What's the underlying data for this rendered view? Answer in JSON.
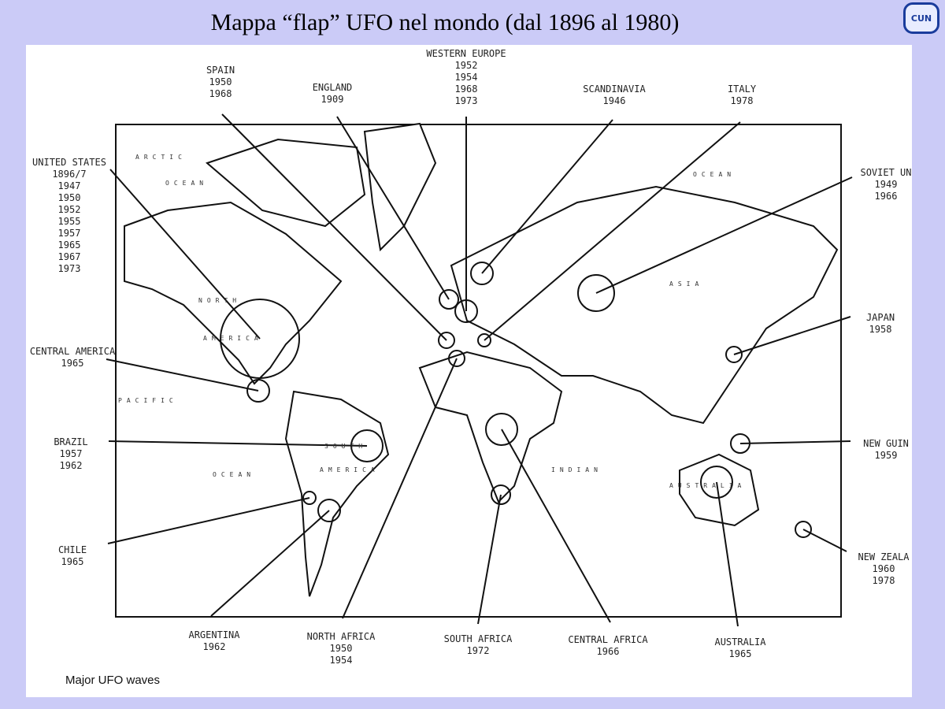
{
  "header": {
    "title": "Mappa “flap” UFO nel mondo  (dal 1896 al 1980)",
    "logo": "CUN"
  },
  "map": {
    "caption": "Major UFO waves",
    "labels": [
      {
        "region": "SPAIN",
        "years": [
          "1950",
          "1968"
        ]
      },
      {
        "region": "WESTERN EUROPE",
        "years": [
          "1952",
          "1954",
          "1968",
          "1973"
        ]
      },
      {
        "region": "ENGLAND",
        "years": [
          "1909"
        ]
      },
      {
        "region": "SCANDINAVIA",
        "years": [
          "1946"
        ]
      },
      {
        "region": "ITALY",
        "years": [
          "1978"
        ]
      },
      {
        "region": "UNITED STATES",
        "years": [
          "1896/7",
          "1947",
          "1950",
          "1952",
          "1955",
          "1957",
          "1965",
          "1967",
          "1973"
        ]
      },
      {
        "region": "SOVIET UN",
        "years": [
          "1949",
          "1966"
        ]
      },
      {
        "region": "CENTRAL AMERICA",
        "years": [
          "1965"
        ]
      },
      {
        "region": "JAPAN",
        "years": [
          "1958"
        ]
      },
      {
        "region": "BRAZIL",
        "years": [
          "1957",
          "1962"
        ]
      },
      {
        "region": "NEW GUIN",
        "years": [
          "1959"
        ]
      },
      {
        "region": "CHILE",
        "years": [
          "1965"
        ]
      },
      {
        "region": "NEW ZEALA",
        "years": [
          "1960",
          "1978"
        ]
      },
      {
        "region": "ARGENTINA",
        "years": [
          "1962"
        ]
      },
      {
        "region": "NORTH AFRICA",
        "years": [
          "1950",
          "1954"
        ]
      },
      {
        "region": "SOUTH AFRICA",
        "years": [
          "1972"
        ]
      },
      {
        "region": "CENTRAL AFRICA",
        "years": [
          "1966"
        ]
      },
      {
        "region": "AUSTRALIA",
        "years": [
          "1965"
        ]
      }
    ],
    "map_text": [
      "NORTH",
      "AMERICA",
      "SOUTH",
      "AMERICA",
      "ASIA",
      "AUSTRALIA",
      "ARCTIC",
      "OCEAN",
      "PACIFIC",
      "OCEAN",
      "INDIAN",
      "OCEAN"
    ]
  }
}
